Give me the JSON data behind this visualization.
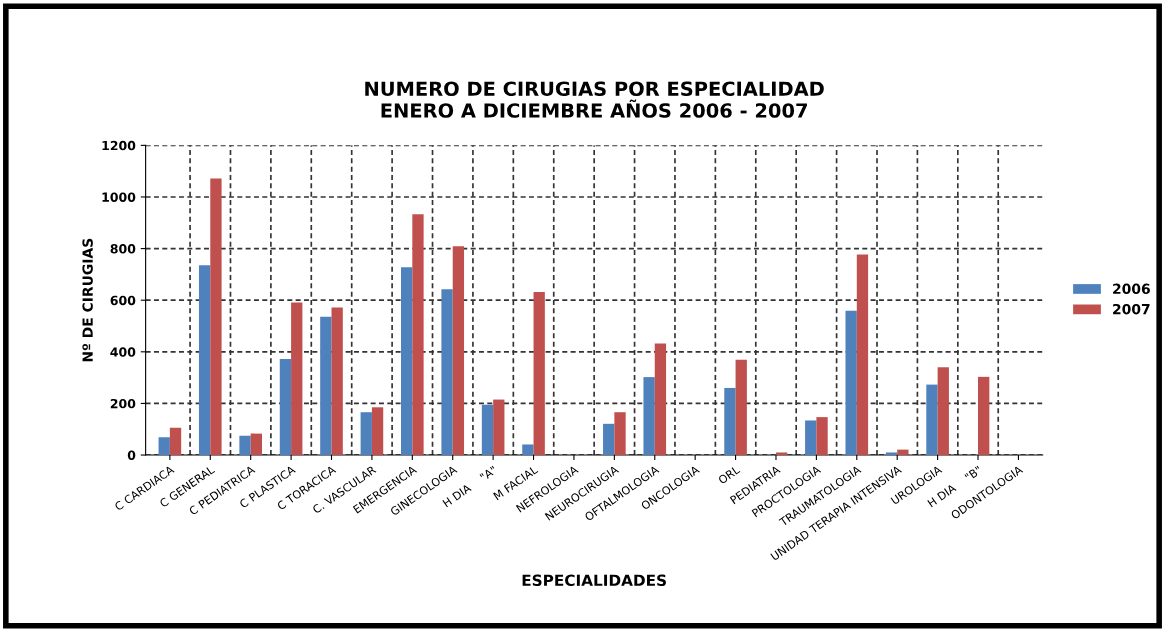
{
  "chart_data": {
    "type": "bar",
    "title": "NUMERO DE CIRUGIAS POR ESPECIALIDAD\nENERO A DICIEMBRE AÑOS 2006 - 2007",
    "xlabel": "ESPECIALIDADES",
    "ylabel": "Nº DE CIRUGIAS",
    "categories": [
      "C CARDIACA",
      "C GENERAL",
      "C PEDIATRICA",
      "C PLASTICA",
      "C TORACICA",
      "C. VASCULAR",
      "EMERGENCIA",
      "GINECOLOGIA",
      "H DIA    \"A\"",
      "M FACIAL",
      "NEFROLOGIA",
      "NEUROCIRUGIA",
      "OFTALMOLOGIA",
      "ONCOLOGIA",
      "ORL",
      "PEDIATRIA",
      "PROCTOLOGIA",
      "TRAUMATOLOGIA",
      "UNIDAD TERAPIA INTENSIVA",
      "UROLOGIA",
      "H DIA    \"B\"",
      "ODONTOLOGIA"
    ],
    "series": [
      {
        "name": "2006",
        "color": "#4f81bd",
        "values": [
          69,
          735,
          75,
          372,
          536,
          166,
          728,
          642,
          195,
          41,
          0,
          121,
          302,
          0,
          260,
          0,
          134,
          559,
          10,
          273,
          0,
          0
        ]
      },
      {
        "name": "2007",
        "color": "#c0504d",
        "values": [
          106,
          1072,
          83,
          591,
          572,
          185,
          933,
          809,
          215,
          632,
          0,
          166,
          432,
          0,
          369,
          10,
          147,
          777,
          21,
          340,
          303,
          0
        ]
      }
    ],
    "ylim": [
      0,
      1200
    ],
    "yticks": [
      0,
      200,
      400,
      600,
      800,
      1000,
      1200
    ],
    "grid": true,
    "legend": "right"
  }
}
